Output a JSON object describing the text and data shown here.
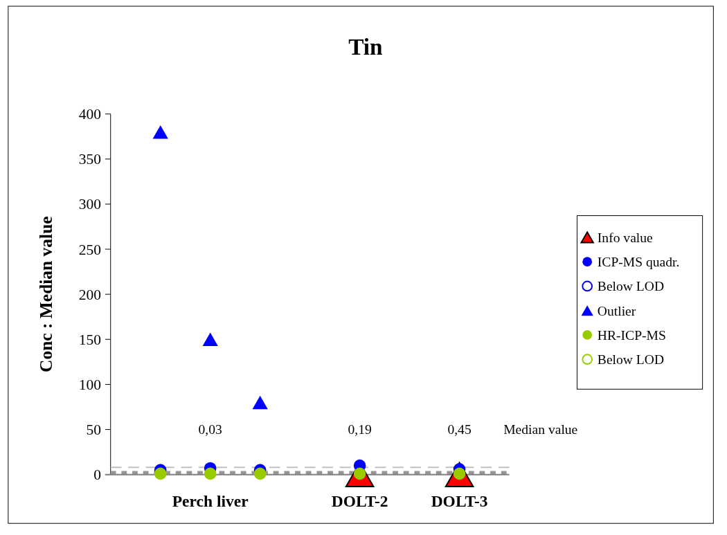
{
  "chart_data": {
    "type": "scatter",
    "title": "Tin",
    "ylabel": "Conc : Median value",
    "categories": [
      null,
      "Perch liver",
      null,
      null,
      "DOLT-2",
      null,
      "DOLT-3"
    ],
    "ylim": [
      0,
      400
    ],
    "yticks": [
      0,
      50,
      100,
      150,
      200,
      250,
      300,
      350,
      400
    ],
    "grid": false,
    "legend": "right",
    "series": [
      {
        "name": "Info value",
        "color": "#ff0000",
        "marker": "triangle",
        "values": [
          null,
          null,
          null,
          null,
          0,
          null,
          0
        ]
      },
      {
        "name": "ICP-MS quadr.",
        "color": "#0000ff",
        "marker": "circle",
        "values": [
          5,
          7,
          5,
          null,
          10,
          null,
          6
        ]
      },
      {
        "name": "Below LOD",
        "color": "#0000ff",
        "marker": "circle",
        "values": [
          null,
          null,
          null,
          null,
          null,
          null,
          null
        ]
      },
      {
        "name": "Outlier",
        "color": "#0000ff",
        "marker": "triangle",
        "values": [
          380,
          150,
          80,
          null,
          null,
          null,
          null
        ]
      },
      {
        "name": "HR-ICP-MS",
        "color": "#99cc00",
        "marker": "circle",
        "values": [
          1,
          1,
          1,
          null,
          1,
          null,
          1
        ]
      },
      {
        "name": "Below LOD",
        "color": "#99cc00",
        "marker": "circle",
        "values": [
          null,
          null,
          null,
          null,
          null,
          null,
          null
        ]
      }
    ],
    "ref_lines": [
      {
        "axis": "y",
        "value": 8,
        "color": "#c0c0c0",
        "line_style": "dashed"
      },
      {
        "axis": "y",
        "value": 2,
        "color": "#969696",
        "line_style": "dotted"
      }
    ],
    "annotations": [
      "0,03",
      "0,19",
      "0,45",
      "Median value"
    ]
  }
}
